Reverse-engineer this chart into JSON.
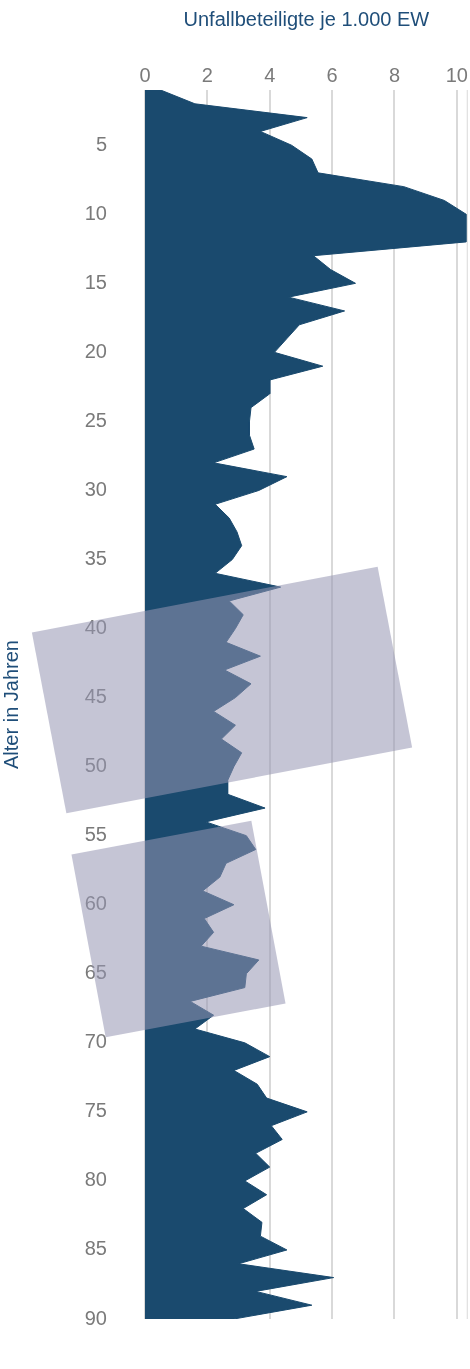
{
  "chart_data": {
    "type": "area",
    "orientation": "horizontal",
    "xlabel": "Unfallbeteiligte je 1.000 EW",
    "ylabel": "Alter in Jahren",
    "x": [
      1,
      2,
      3,
      4,
      5,
      6,
      7,
      8,
      9,
      10,
      11,
      12,
      13,
      14,
      15,
      16,
      17,
      18,
      19,
      20,
      21,
      22,
      23,
      24,
      25,
      26,
      27,
      28,
      29,
      30,
      31,
      32,
      33,
      34,
      35,
      36,
      37,
      38,
      39,
      40,
      41,
      42,
      43,
      44,
      45,
      46,
      47,
      48,
      49,
      50,
      51,
      52,
      53,
      54,
      55,
      56,
      57,
      58,
      59,
      60,
      61,
      62,
      63,
      64,
      65,
      66,
      67,
      68,
      69,
      70,
      71,
      72,
      73,
      74,
      75,
      76,
      77,
      78,
      79,
      80,
      81,
      82,
      83,
      84,
      85,
      86,
      87,
      88,
      89,
      90
    ],
    "series": [
      {
        "color": "#1a4a6e",
        "values": [
          0.5,
          1.6,
          5.2,
          3.7,
          4.7,
          5.35,
          5.55,
          8.3,
          9.6,
          10.3,
          10.3,
          10.3,
          5.4,
          5.95,
          6.75,
          4.6,
          6.4,
          4.95,
          4.55,
          4.15,
          5.7,
          4.0,
          4.0,
          3.4,
          3.35,
          3.35,
          3.5,
          2.2,
          4.55,
          3.65,
          2.25,
          2.7,
          2.95,
          3.1,
          2.8,
          2.25,
          4.35,
          2.7,
          3.15,
          2.9,
          2.6,
          3.7,
          2.55,
          3.4,
          2.9,
          2.2,
          2.9,
          2.45,
          3.1,
          2.85,
          2.65,
          2.65,
          3.85,
          1.95,
          3.25,
          3.55,
          2.6,
          2.4,
          1.85,
          2.85,
          1.9,
          2.2,
          1.8,
          3.65,
          3.25,
          3.2,
          1.45,
          2.2,
          1.6,
          3.2,
          4.0,
          2.85,
          3.6,
          3.9,
          5.2,
          4.05,
          4.4,
          3.55,
          4.0,
          3.2,
          3.9,
          3.15,
          3.75,
          3.7,
          4.55,
          3.0,
          6.05,
          3.55,
          5.35,
          2.85
        ]
      }
    ],
    "xlim": [
      0,
      10.35
    ],
    "xticks": [
      0,
      2,
      4,
      6,
      8,
      10
    ],
    "ylim": [
      90,
      1
    ],
    "yticks": [
      5,
      10,
      15,
      20,
      25,
      30,
      35,
      40,
      45,
      50,
      55,
      60,
      65,
      70,
      75,
      80,
      85,
      90
    ],
    "grid": "x",
    "legend": false,
    "marker": "none"
  }
}
